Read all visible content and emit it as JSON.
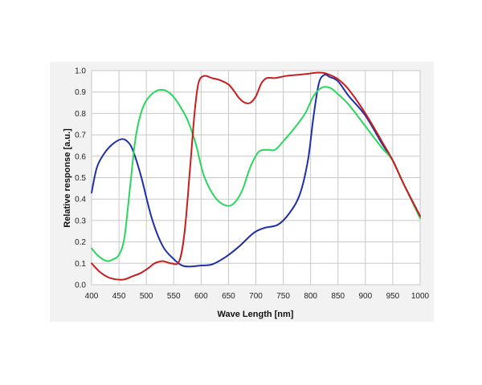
{
  "chart_data": {
    "type": "line",
    "title": "",
    "xlabel": "Wave Length [nm]",
    "ylabel": "Relative response  [a.u.]",
    "xlim": [
      400,
      1000
    ],
    "ylim": [
      0.0,
      1.0
    ],
    "x_ticks": [
      "400",
      "450",
      "500",
      "550",
      "600",
      "650",
      "700",
      "750",
      "800",
      "850",
      "900",
      "950",
      "1000"
    ],
    "y_ticks": [
      "0.0",
      "0.1",
      "0.2",
      "0.3",
      "0.4",
      "0.5",
      "0.6",
      "0.7",
      "0.8",
      "0.9",
      "1.0"
    ],
    "grid": true,
    "legend": "none",
    "series": [
      {
        "color": "#1f2fa8",
        "x": [
          400,
          410,
          425,
          440,
          455,
          465,
          475,
          490,
          510,
          530,
          550,
          565,
          580,
          600,
          620,
          645,
          670,
          695,
          715,
          740,
          760,
          780,
          795,
          805,
          815,
          825,
          835,
          850,
          870,
          900,
          930,
          950,
          970,
          1000
        ],
        "y": [
          0.43,
          0.55,
          0.62,
          0.66,
          0.68,
          0.67,
          0.63,
          0.51,
          0.31,
          0.18,
          0.12,
          0.09,
          0.085,
          0.09,
          0.095,
          0.13,
          0.18,
          0.24,
          0.265,
          0.28,
          0.33,
          0.42,
          0.58,
          0.78,
          0.94,
          0.98,
          0.97,
          0.95,
          0.88,
          0.79,
          0.66,
          0.58,
          0.47,
          0.32
        ]
      },
      {
        "color": "#2ad65e",
        "x": [
          400,
          410,
          420,
          430,
          440,
          450,
          460,
          470,
          480,
          490,
          500,
          515,
          530,
          545,
          560,
          575,
          590,
          605,
          625,
          645,
          660,
          675,
          690,
          705,
          720,
          735,
          750,
          770,
          790,
          805,
          820,
          835,
          850,
          870,
          900,
          930,
          950,
          970,
          1000
        ],
        "y": [
          0.17,
          0.14,
          0.12,
          0.11,
          0.12,
          0.14,
          0.22,
          0.45,
          0.68,
          0.8,
          0.86,
          0.9,
          0.91,
          0.89,
          0.84,
          0.77,
          0.66,
          0.51,
          0.41,
          0.37,
          0.38,
          0.44,
          0.55,
          0.62,
          0.63,
          0.63,
          0.67,
          0.73,
          0.8,
          0.88,
          0.92,
          0.92,
          0.89,
          0.84,
          0.74,
          0.64,
          0.58,
          0.47,
          0.31
        ]
      },
      {
        "color": "#c81e1e",
        "x": [
          400,
          415,
          430,
          445,
          460,
          475,
          490,
          505,
          515,
          530,
          545,
          560,
          570,
          580,
          588,
          595,
          605,
          620,
          635,
          650,
          660,
          670,
          680,
          690,
          700,
          710,
          720,
          735,
          755,
          775,
          795,
          810,
          820,
          830,
          850,
          870,
          900,
          930,
          950,
          970,
          1000
        ],
        "y": [
          0.1,
          0.06,
          0.035,
          0.025,
          0.025,
          0.04,
          0.055,
          0.08,
          0.1,
          0.11,
          0.1,
          0.11,
          0.25,
          0.55,
          0.8,
          0.94,
          0.975,
          0.965,
          0.955,
          0.935,
          0.905,
          0.87,
          0.85,
          0.85,
          0.88,
          0.94,
          0.965,
          0.965,
          0.975,
          0.98,
          0.985,
          0.99,
          0.99,
          0.985,
          0.96,
          0.91,
          0.8,
          0.67,
          0.58,
          0.47,
          0.32
        ]
      }
    ]
  }
}
